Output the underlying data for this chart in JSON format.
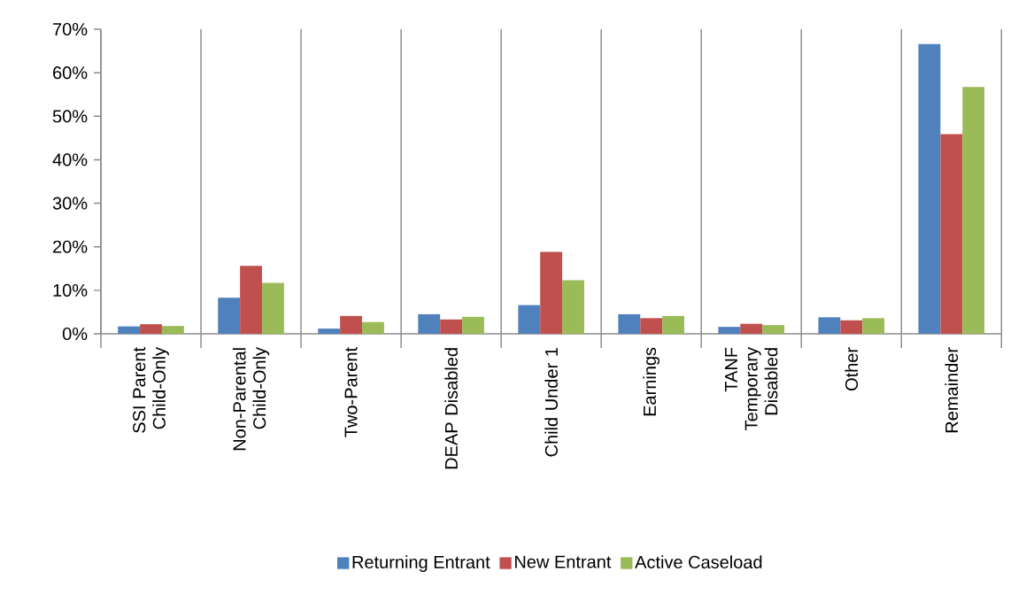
{
  "chart_data": {
    "type": "bar",
    "categories": [
      "SSI Parent Child-Only",
      "Non-Parental Child-Only",
      "Two-Parent",
      "DEAP Disabled",
      "Child Under 1",
      "Earnings",
      "TANF Temporary Disabled",
      "Other",
      "Remainder"
    ],
    "series": [
      {
        "name": "Returning Entrant",
        "color": "#4f81bd",
        "values": [
          1.7,
          8.3,
          1.2,
          4.5,
          6.6,
          4.5,
          1.6,
          3.8,
          66.6
        ]
      },
      {
        "name": "New Entrant",
        "color": "#c0504d",
        "values": [
          2.2,
          15.6,
          4.1,
          3.3,
          18.8,
          3.6,
          2.3,
          3.1,
          45.9
        ]
      },
      {
        "name": "Active Caseload",
        "color": "#9bbb59",
        "values": [
          1.8,
          11.7,
          2.7,
          3.9,
          12.3,
          4.1,
          2.0,
          3.6,
          56.7
        ]
      }
    ],
    "ylim": [
      0,
      70
    ],
    "yticks": [
      {
        "value": 0,
        "label": "0%"
      },
      {
        "value": 10,
        "label": "10%"
      },
      {
        "value": 20,
        "label": "20%"
      },
      {
        "value": 30,
        "label": "30%"
      },
      {
        "value": 40,
        "label": "40%"
      },
      {
        "value": 50,
        "label": "50%"
      },
      {
        "value": 60,
        "label": "60%"
      },
      {
        "value": 70,
        "label": "70%"
      }
    ],
    "grid": "x",
    "legend": "bottom"
  }
}
